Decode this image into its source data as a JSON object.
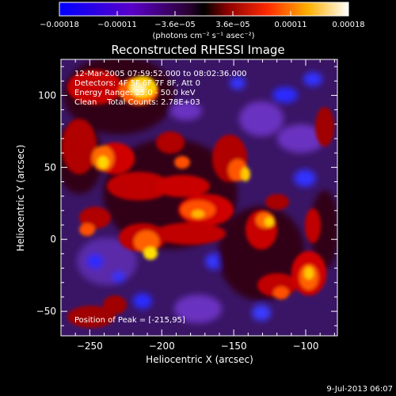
{
  "colorbar": {
    "tick_labels": [
      "-0.00018",
      "-0.00011",
      "-3.6e-05",
      "3.6e-05",
      "0.00011",
      "0.00018"
    ],
    "units_label": "(photons cm⁻² s⁻¹ asec⁻²)",
    "range": [
      -0.00018,
      0.00018
    ]
  },
  "title": "Reconstructed RHESSI Image",
  "info_lines": [
    "12-Mar-2005 07:59:52.000 to 08:02:36.000",
    "Detectors: 4F 5F 6F 7F 8F, Att 0",
    "Energy Range: 25.0 - 50.0 keV",
    "Clean    Total Counts: 2.78E+03"
  ],
  "peak_label": "Position of Peak = [-215,95]",
  "axes": {
    "xlabel": "Heliocentric X (arcsec)",
    "ylabel": "Heliocentric Y (arcsec)",
    "xlim": [
      -270,
      -78
    ],
    "ylim": [
      -67,
      125
    ],
    "x_ticks": [
      -250,
      -200,
      -150,
      -100
    ],
    "y_ticks": [
      -50,
      0,
      50,
      100
    ]
  },
  "footer_date": "9-Jul-2013 06:07"
}
